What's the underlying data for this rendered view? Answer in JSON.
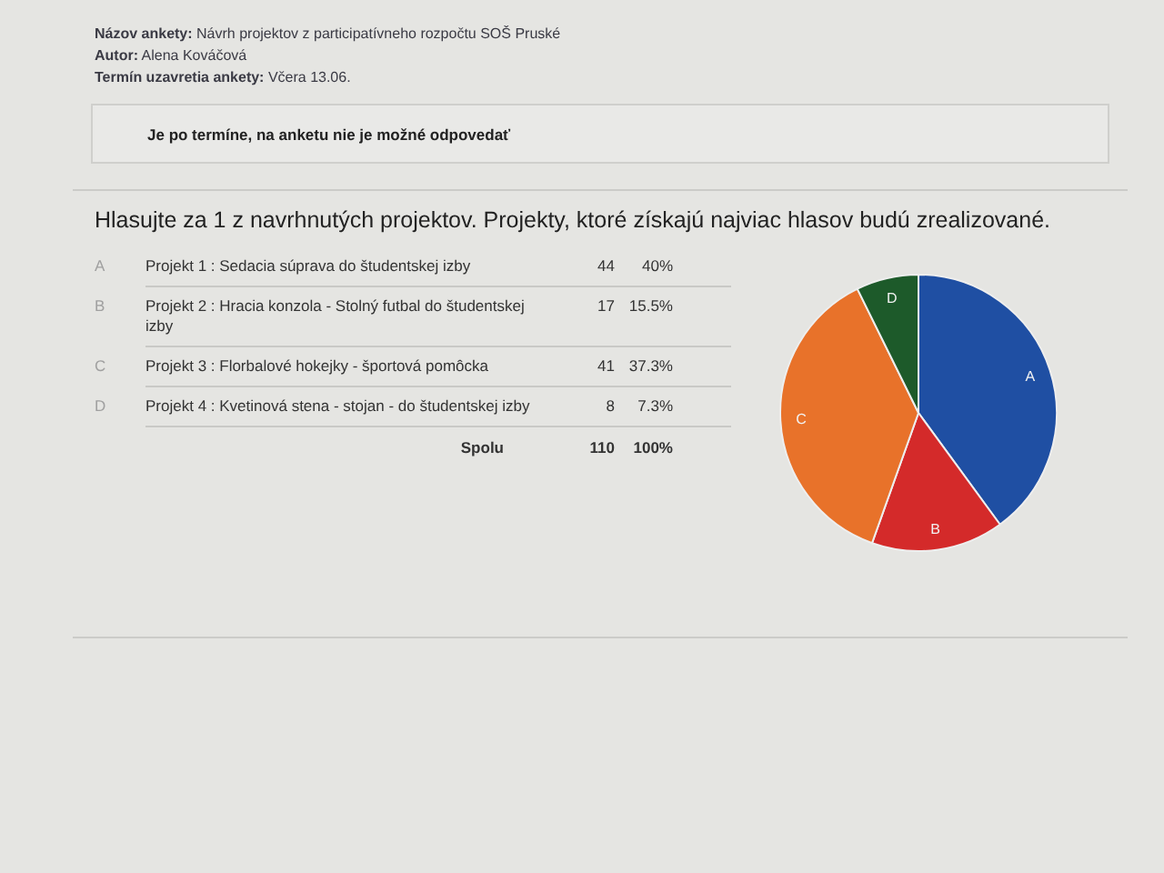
{
  "chart_data": [
    {
      "type": "other",
      "subtitle": "Je po termíne, na anketu nie je možné odpovedať",
      "annotations": [
        "Názov ankety: Návrh projektov z participatívneho rozpočtu SOŠ Pruské",
        "Autor: Alena Kováčová",
        "Termín uzavretia ankety: Včera 13.06."
      ]
    },
    {
      "type": "other",
      "title": "Hlasujte za 1 z navrhnutých projektov. Projekty, ktoré získajú najviac hlasov budú zrealizované.",
      "annotations": [
        "A",
        "Projekt 1 : Sedacia súprava do študentskej izby",
        "44",
        "40%",
        "B",
        "Projekt 2 : Hracia konzola - Stolný futbal do študentskej izby",
        "17",
        "15.5%",
        "C",
        "Projekt 3 : Florbalové hokejky - športová pomôcka",
        "41",
        "37.3%",
        "D",
        "Projekt 4 : Kvetinová stena - stojan - do študentskej izby",
        "8",
        "7.3%",
        "Spolu",
        "110",
        "100%"
      ]
    },
    {
      "type": "pie",
      "categories": [
        "A",
        "B",
        "C",
        "D"
      ],
      "values": [
        40,
        15.5,
        37.3,
        7.3
      ],
      "colors": [
        "#1f4fa3",
        "#d42a2a",
        "#e8722a",
        "#1d5a2a"
      ]
    }
  ]
}
